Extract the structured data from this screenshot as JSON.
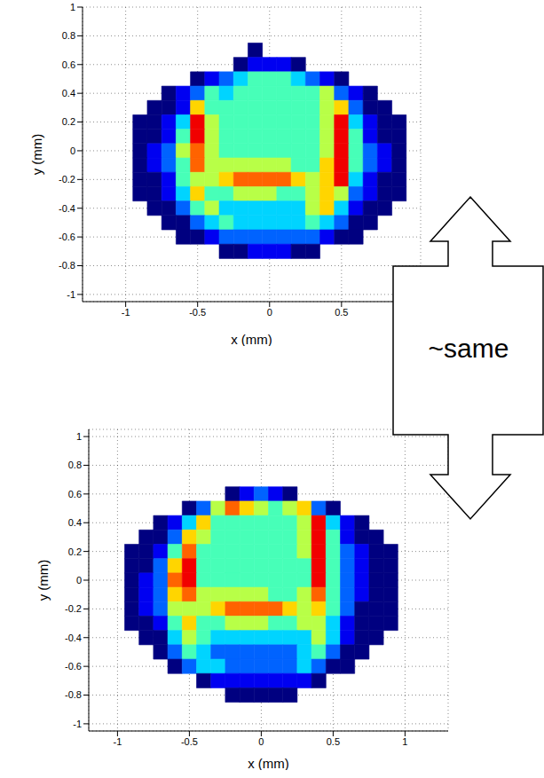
{
  "chart_data": [
    {
      "type": "heatmap",
      "x_label": "x (mm)",
      "y_label": "y (mm)",
      "xlim": [
        -1.3,
        1.05
      ],
      "ylim": [
        -1.05,
        1.0
      ],
      "xticks": [
        -1,
        -0.5,
        0,
        0.5
      ],
      "yticks": [
        -1,
        -0.8,
        -0.6,
        -0.4,
        -0.2,
        0,
        0.2,
        0.4,
        0.6,
        0.8,
        1
      ],
      "grid": true,
      "zlim": [
        1,
        10
      ],
      "x": [
        -1,
        -0.9,
        -0.8,
        -0.7,
        -0.6,
        -0.5,
        -0.4,
        -0.3,
        -0.2,
        -0.1,
        0,
        0.1,
        0.2,
        0.3,
        0.4,
        0.5,
        0.6,
        0.7,
        0.8,
        0.9,
        1
      ],
      "y": [
        0.7,
        0.6,
        0.5,
        0.4,
        0.3,
        0.2,
        0.1,
        0,
        -0.1,
        -0.2,
        -0.3,
        -0.4,
        -0.5,
        -0.6,
        -0.7,
        -0.8
      ],
      "cells": [
        [
          null,
          null,
          null,
          null,
          null,
          null,
          null,
          null,
          null,
          1,
          null,
          null,
          null,
          null,
          null,
          null,
          null,
          null,
          null,
          null,
          null
        ],
        [
          null,
          null,
          null,
          null,
          null,
          null,
          null,
          null,
          1,
          2,
          2,
          2,
          1,
          null,
          null,
          null,
          null,
          null,
          null,
          null,
          null
        ],
        [
          null,
          null,
          null,
          null,
          null,
          1,
          2,
          3,
          4,
          5,
          5,
          5,
          4,
          3,
          2,
          1,
          null,
          null,
          null,
          null,
          null
        ],
        [
          null,
          null,
          null,
          1,
          2,
          3,
          5,
          4,
          5,
          5,
          5,
          5,
          5,
          5,
          6,
          3,
          2,
          1,
          null,
          null,
          null
        ],
        [
          null,
          null,
          1,
          1,
          2,
          7,
          5,
          5,
          5,
          5,
          5,
          5,
          5,
          5,
          6,
          7,
          3,
          1,
          1,
          null,
          null
        ],
        [
          null,
          1,
          1,
          2,
          4,
          9,
          6,
          5,
          5,
          5,
          5,
          5,
          5,
          5,
          6,
          9,
          4,
          2,
          1,
          1,
          null
        ],
        [
          null,
          1,
          1,
          2,
          5,
          9,
          6,
          5,
          5,
          5,
          5,
          5,
          5,
          5,
          6,
          9,
          5,
          2,
          1,
          1,
          null
        ],
        [
          null,
          1,
          2,
          3,
          6,
          8,
          6,
          5,
          5,
          5,
          5,
          5,
          5,
          5,
          6,
          9,
          5,
          3,
          2,
          1,
          null
        ],
        [
          null,
          1,
          2,
          3,
          5,
          8,
          6,
          6,
          6,
          6,
          6,
          6,
          5,
          5,
          7,
          9,
          5,
          3,
          2,
          1,
          null
        ],
        [
          null,
          1,
          1,
          2,
          5,
          6,
          6,
          7,
          8,
          8,
          8,
          8,
          7,
          6,
          7,
          9,
          4,
          2,
          1,
          1,
          null
        ],
        [
          null,
          1,
          1,
          2,
          4,
          7,
          5,
          5,
          6,
          6,
          6,
          5,
          5,
          6,
          7,
          6,
          3,
          2,
          1,
          1,
          null
        ],
        [
          null,
          null,
          1,
          1,
          3,
          5,
          6,
          4,
          4,
          4,
          4,
          4,
          4,
          6,
          7,
          4,
          2,
          1,
          1,
          null,
          null
        ],
        [
          null,
          null,
          null,
          1,
          1,
          3,
          4,
          5,
          4,
          4,
          4,
          4,
          4,
          5,
          4,
          3,
          1,
          1,
          null,
          null,
          null
        ],
        [
          null,
          null,
          null,
          null,
          1,
          1,
          2,
          3,
          3,
          3,
          3,
          3,
          3,
          3,
          2,
          1,
          1,
          null,
          null,
          null,
          null
        ],
        [
          null,
          null,
          null,
          null,
          null,
          null,
          null,
          1,
          1,
          2,
          2,
          2,
          1,
          1,
          null,
          null,
          null,
          null,
          null,
          null,
          null
        ],
        [
          null,
          null,
          null,
          null,
          null,
          null,
          null,
          null,
          null,
          null,
          null,
          null,
          null,
          null,
          null,
          null,
          null,
          null,
          null,
          null,
          null
        ]
      ]
    },
    {
      "type": "heatmap",
      "x_label": "x (mm)",
      "y_label": "y (mm)",
      "xlim": [
        -1.2,
        1.3
      ],
      "ylim": [
        -1.05,
        1.05
      ],
      "xticks": [
        -1,
        -0.5,
        0,
        0.5,
        1
      ],
      "yticks": [
        -1,
        -0.8,
        -0.6,
        -0.4,
        -0.2,
        0,
        0.2,
        0.4,
        0.6,
        0.8,
        1
      ],
      "grid": true,
      "zlim": [
        1,
        10
      ],
      "x": [
        -1,
        -0.9,
        -0.8,
        -0.7,
        -0.6,
        -0.5,
        -0.4,
        -0.3,
        -0.2,
        -0.1,
        0,
        0.1,
        0.2,
        0.3,
        0.4,
        0.5,
        0.6,
        0.7,
        0.8,
        0.9,
        1
      ],
      "y": [
        0.7,
        0.6,
        0.5,
        0.4,
        0.3,
        0.2,
        0.1,
        0,
        -0.1,
        -0.2,
        -0.3,
        -0.4,
        -0.5,
        -0.6,
        -0.7,
        -0.8
      ],
      "cells": [
        [
          null,
          null,
          null,
          null,
          null,
          null,
          null,
          null,
          null,
          null,
          null,
          null,
          null,
          null,
          null,
          null,
          null,
          null,
          null,
          null,
          null
        ],
        [
          null,
          null,
          null,
          null,
          null,
          null,
          null,
          null,
          1,
          2,
          3,
          2,
          1,
          null,
          null,
          null,
          null,
          null,
          null,
          null,
          null
        ],
        [
          null,
          null,
          null,
          null,
          null,
          1,
          3,
          6,
          8,
          7,
          6,
          5,
          6,
          7,
          3,
          1,
          null,
          null,
          null,
          null,
          null
        ],
        [
          null,
          null,
          null,
          1,
          2,
          4,
          7,
          5,
          5,
          5,
          5,
          5,
          5,
          6,
          9,
          4,
          2,
          1,
          null,
          null,
          null
        ],
        [
          null,
          null,
          1,
          1,
          3,
          7,
          6,
          5,
          5,
          5,
          5,
          5,
          5,
          6,
          9,
          5,
          2,
          1,
          1,
          null,
          null
        ],
        [
          null,
          1,
          1,
          2,
          5,
          8,
          5,
          5,
          5,
          5,
          5,
          5,
          5,
          6,
          9,
          5,
          3,
          2,
          1,
          1,
          null
        ],
        [
          null,
          1,
          1,
          3,
          7,
          9,
          5,
          5,
          5,
          5,
          5,
          5,
          5,
          5,
          9,
          5,
          3,
          2,
          1,
          1,
          null
        ],
        [
          null,
          1,
          2,
          3,
          8,
          9,
          5,
          5,
          5,
          5,
          5,
          5,
          5,
          5,
          9,
          5,
          3,
          2,
          1,
          1,
          null
        ],
        [
          null,
          1,
          2,
          3,
          7,
          8,
          6,
          6,
          6,
          6,
          6,
          5,
          5,
          6,
          8,
          5,
          3,
          2,
          1,
          1,
          null
        ],
        [
          null,
          1,
          2,
          3,
          6,
          6,
          6,
          7,
          8,
          8,
          8,
          8,
          7,
          6,
          7,
          5,
          3,
          1,
          1,
          1,
          null
        ],
        [
          null,
          1,
          1,
          2,
          5,
          7,
          5,
          5,
          6,
          6,
          6,
          5,
          5,
          6,
          6,
          4,
          2,
          1,
          1,
          1,
          null
        ],
        [
          null,
          null,
          1,
          1,
          4,
          6,
          5,
          4,
          4,
          4,
          4,
          4,
          4,
          4,
          6,
          4,
          2,
          1,
          1,
          null,
          null
        ],
        [
          null,
          null,
          null,
          1,
          3,
          5,
          4,
          3,
          3,
          3,
          3,
          3,
          3,
          4,
          5,
          3,
          1,
          1,
          null,
          null,
          null
        ],
        [
          null,
          null,
          null,
          null,
          1,
          3,
          4,
          4,
          3,
          3,
          3,
          3,
          3,
          4,
          3,
          1,
          1,
          null,
          null,
          null,
          null
        ],
        [
          null,
          null,
          null,
          null,
          null,
          null,
          1,
          2,
          2,
          2,
          2,
          2,
          2,
          2,
          1,
          null,
          null,
          null,
          null,
          null,
          null
        ],
        [
          null,
          null,
          null,
          null,
          null,
          null,
          null,
          null,
          1,
          1,
          1,
          1,
          1,
          null,
          null,
          null,
          null,
          null,
          null,
          null,
          null
        ]
      ]
    }
  ],
  "annotation": "~same"
}
